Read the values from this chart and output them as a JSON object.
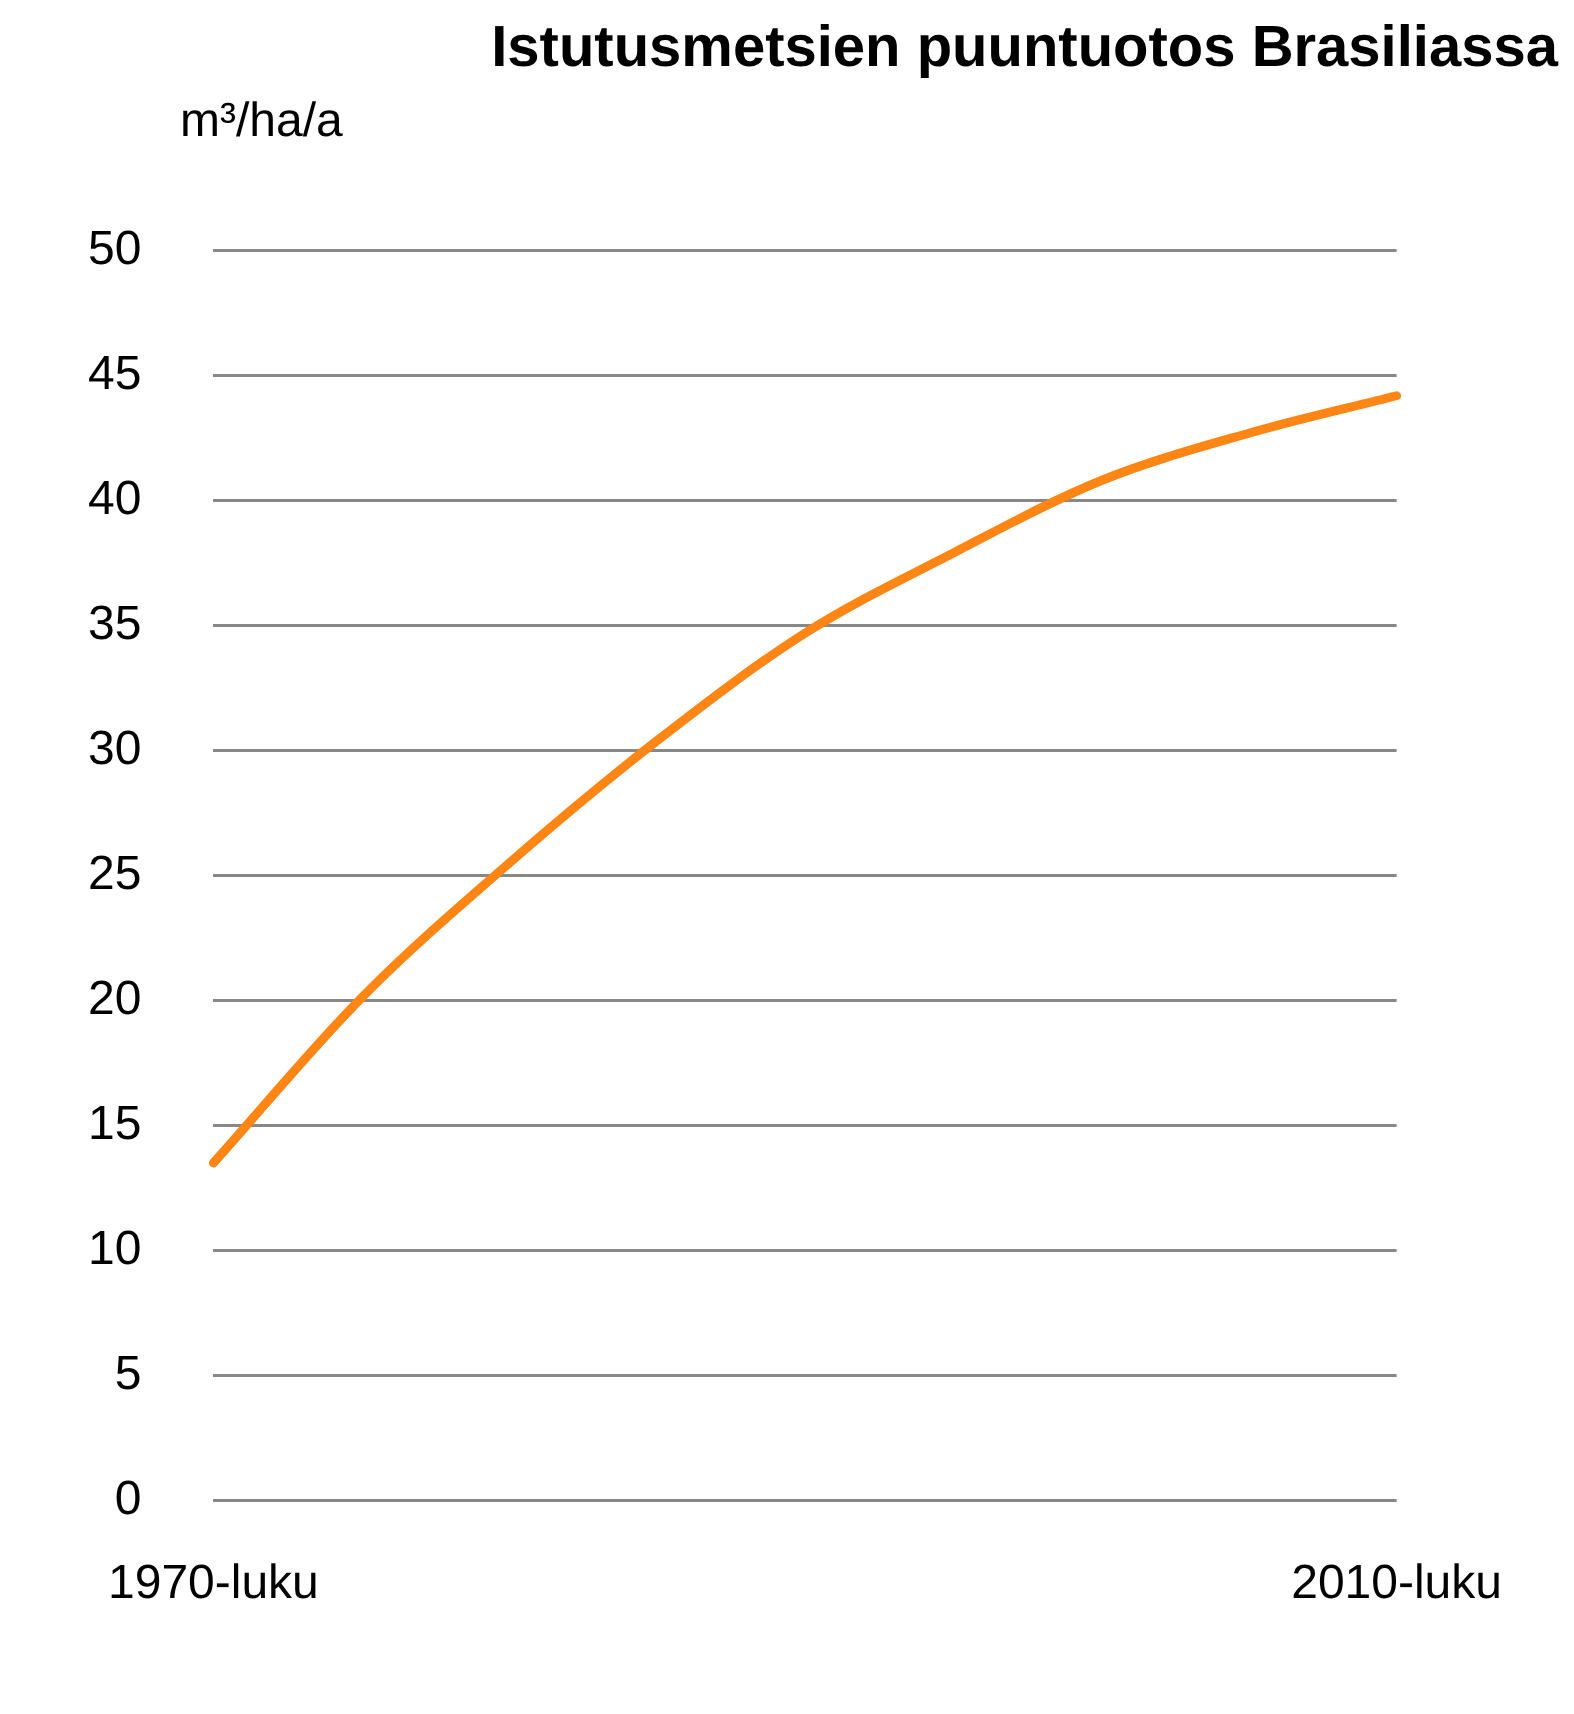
{
  "chart_data": {
    "type": "line",
    "title": "Istutusmetsien puuntuotos Brasiliassa",
    "ylabel": "m³/ha/a",
    "categories": [
      "1970-luku",
      null,
      null,
      null,
      null,
      null,
      null,
      null,
      "2010-luku"
    ],
    "series": [
      {
        "color": "#ff8515",
        "values": [
          13.5,
          20.1,
          25.5,
          30.4,
          34.7,
          37.9,
          40.8,
          42.7,
          44.2
        ]
      }
    ],
    "ylim": [
      0,
      50
    ],
    "yticks": [
      0,
      5,
      10,
      15,
      20,
      25,
      30,
      35,
      40,
      45,
      50
    ],
    "grid": "y",
    "legend": false,
    "marker": "none",
    "line_style": "solid"
  }
}
